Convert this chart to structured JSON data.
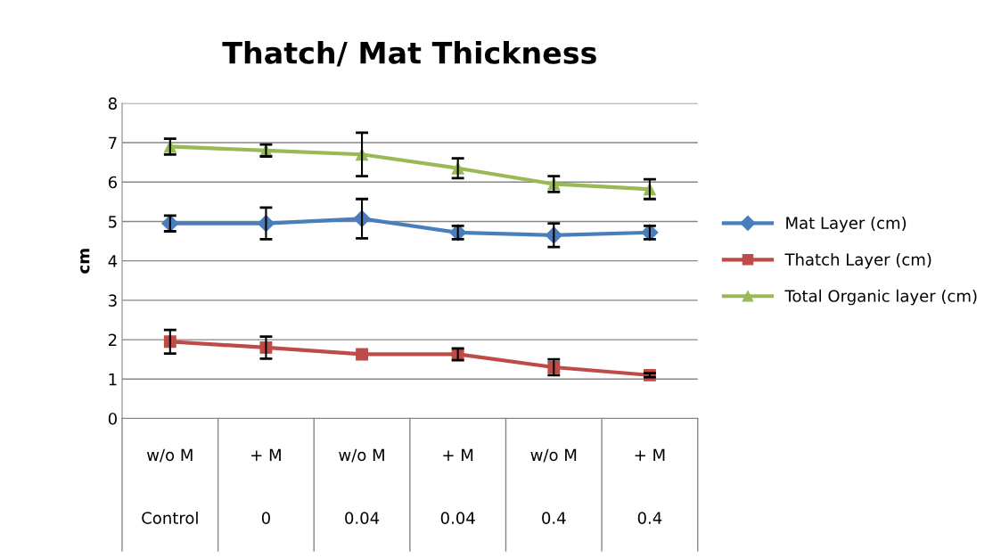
{
  "chart_data": {
    "type": "line",
    "title": "Thatch/ Mat Thickness",
    "ylabel": "cm",
    "categories": [
      "w/o M\nControl",
      "+ M\n0",
      "w/o M\n0.04",
      "+ M\n0.04",
      "w/o M\n0.4",
      "+ M\n0.4"
    ],
    "series": [
      {
        "name": "Mat Layer (cm)",
        "color": "#4a7ebb",
        "marker": "diamond",
        "values": [
          4.95,
          4.95,
          5.07,
          4.72,
          4.65,
          4.72
        ],
        "errors": [
          0.2,
          0.4,
          0.5,
          0.17,
          0.3,
          0.17
        ]
      },
      {
        "name": "Thatch Layer (cm)",
        "color": "#be4b48",
        "marker": "square",
        "values": [
          1.95,
          1.8,
          1.63,
          1.63,
          1.3,
          1.1
        ],
        "errors": [
          0.3,
          0.28,
          null,
          0.15,
          0.2,
          0.05
        ]
      },
      {
        "name": "Total Organic layer (cm)",
        "color": "#98b954",
        "marker": "triangle",
        "values": [
          6.9,
          6.8,
          6.7,
          6.35,
          5.95,
          5.82
        ],
        "errors": [
          0.2,
          0.15,
          0.55,
          0.25,
          0.2,
          0.25
        ]
      }
    ],
    "ylim": [
      0,
      8
    ],
    "yticks": [
      0,
      1,
      2,
      3,
      4,
      5,
      6,
      7,
      8
    ],
    "grid": "y",
    "legend": "right",
    "line_style": "solid"
  }
}
